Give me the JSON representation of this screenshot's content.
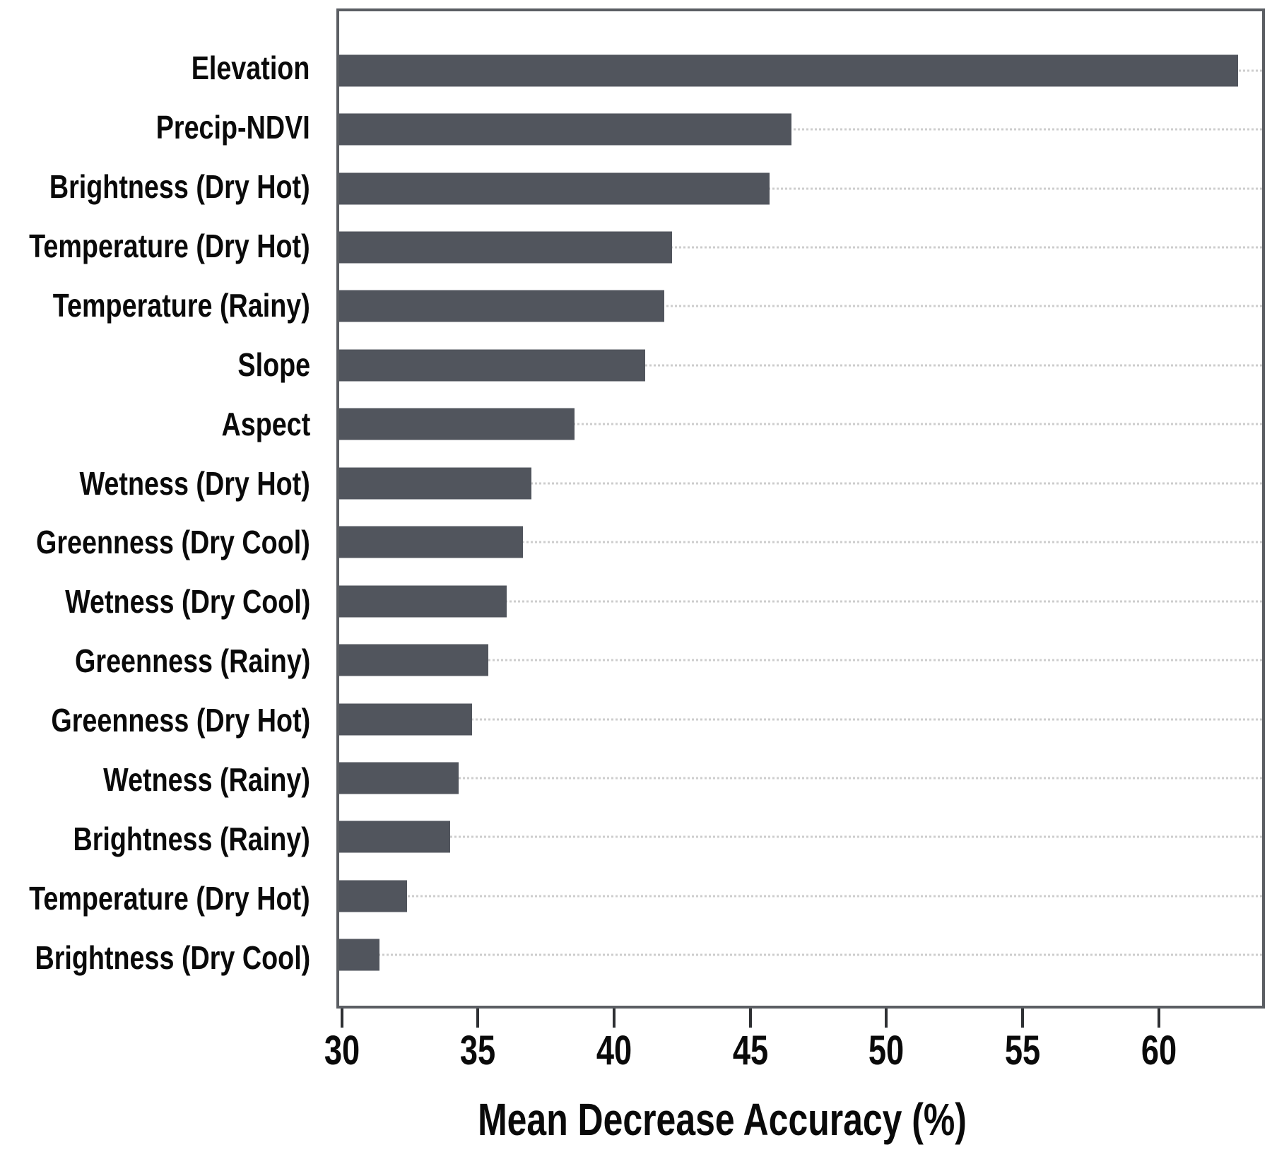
{
  "chart_data": {
    "type": "bar",
    "orientation": "horizontal",
    "title": "",
    "xlabel": "Mean Decrease Accuracy (%)",
    "categories": [
      "Elevation",
      "Precip-NDVI",
      "Brightness (Dry Hot)",
      "Temperature (Dry Hot)",
      "Temperature (Rainy)",
      "Slope",
      "Aspect",
      "Wetness (Dry Hot)",
      "Greenness (Dry Cool)",
      "Wetness (Dry Cool)",
      "Greenness (Rainy)",
      "Greenness (Dry Hot)",
      "Wetness (Rainy)",
      "Brightness (Rainy)",
      "Temperature (Dry Hot)",
      "Brightness (Dry Cool)"
    ],
    "values": [
      63.0,
      46.5,
      45.7,
      42.1,
      41.8,
      41.1,
      38.5,
      36.9,
      36.6,
      36.0,
      35.3,
      34.7,
      34.2,
      33.9,
      32.3,
      31.3
    ],
    "xticks": [
      "30",
      "35",
      "40",
      "45",
      "50",
      "55",
      "60"
    ],
    "xtick_values": [
      30,
      35,
      40,
      45,
      50,
      55,
      60
    ],
    "xlim": [
      29.8,
      63.9
    ],
    "grid": "dotted-horizontal-per-category",
    "legend_position": "none",
    "colors": {
      "bar": "#51555d",
      "box_border": "#5b5e63",
      "gridline": "#cdcdcd",
      "tick_mark": "#2e3033",
      "text": "#0a0a0a",
      "background": "#ffffff"
    }
  }
}
